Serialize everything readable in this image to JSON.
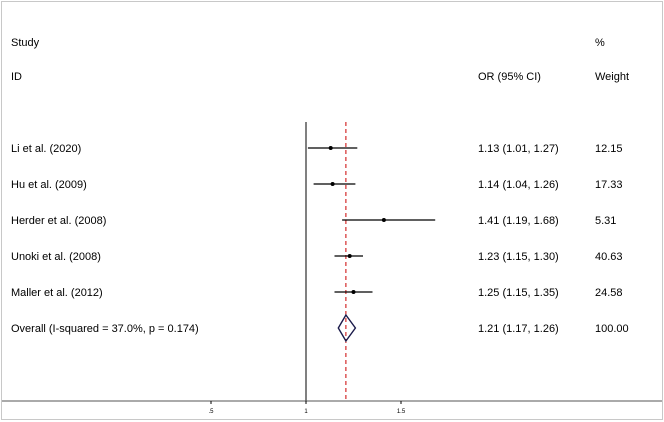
{
  "chart_data": {
    "type": "forest",
    "header": {
      "study_line1": "Study",
      "study_line2": "ID",
      "or_header": "OR (95% CI)",
      "weight_line1": "%",
      "weight_line2": "Weight"
    },
    "studies": [
      {
        "label": "Li et al. (2020)",
        "or": 1.13,
        "lo": 1.01,
        "hi": 1.27,
        "ci_text": "1.13 (1.01, 1.27)",
        "weight": "12.15"
      },
      {
        "label": "Hu et al.  (2009)",
        "or": 1.14,
        "lo": 1.04,
        "hi": 1.26,
        "ci_text": "1.14 (1.04, 1.26)",
        "weight": "17.33"
      },
      {
        "label": "Herder et al.  (2008)",
        "or": 1.41,
        "lo": 1.19,
        "hi": 1.68,
        "ci_text": "1.41 (1.19, 1.68)",
        "weight": "5.31"
      },
      {
        "label": "Unoki et al. (2008)",
        "or": 1.23,
        "lo": 1.15,
        "hi": 1.3,
        "ci_text": "1.23 (1.15, 1.30)",
        "weight": "40.63"
      },
      {
        "label": "Maller et al. (2012)",
        "or": 1.25,
        "lo": 1.15,
        "hi": 1.35,
        "ci_text": "1.25 (1.15, 1.35)",
        "weight": "24.58"
      }
    ],
    "overall": {
      "label": "Overall  (I-squared = 37.0%, p = 0.174)",
      "or": 1.21,
      "lo": 1.17,
      "hi": 1.26,
      "ci_text": "1.21 (1.17, 1.26)",
      "weight": "100.00"
    },
    "x_ticks": [
      {
        "value": 0.5,
        "label": ".5"
      },
      {
        "value": 1,
        "label": "1"
      },
      {
        "value": 1.5,
        "label": "1.5"
      }
    ],
    "null_line": 1,
    "colors": {
      "line": "#000000",
      "overall_reference": "#cc0000",
      "diamond": "#1a1a4a",
      "frame": "#c8c8c8"
    }
  }
}
